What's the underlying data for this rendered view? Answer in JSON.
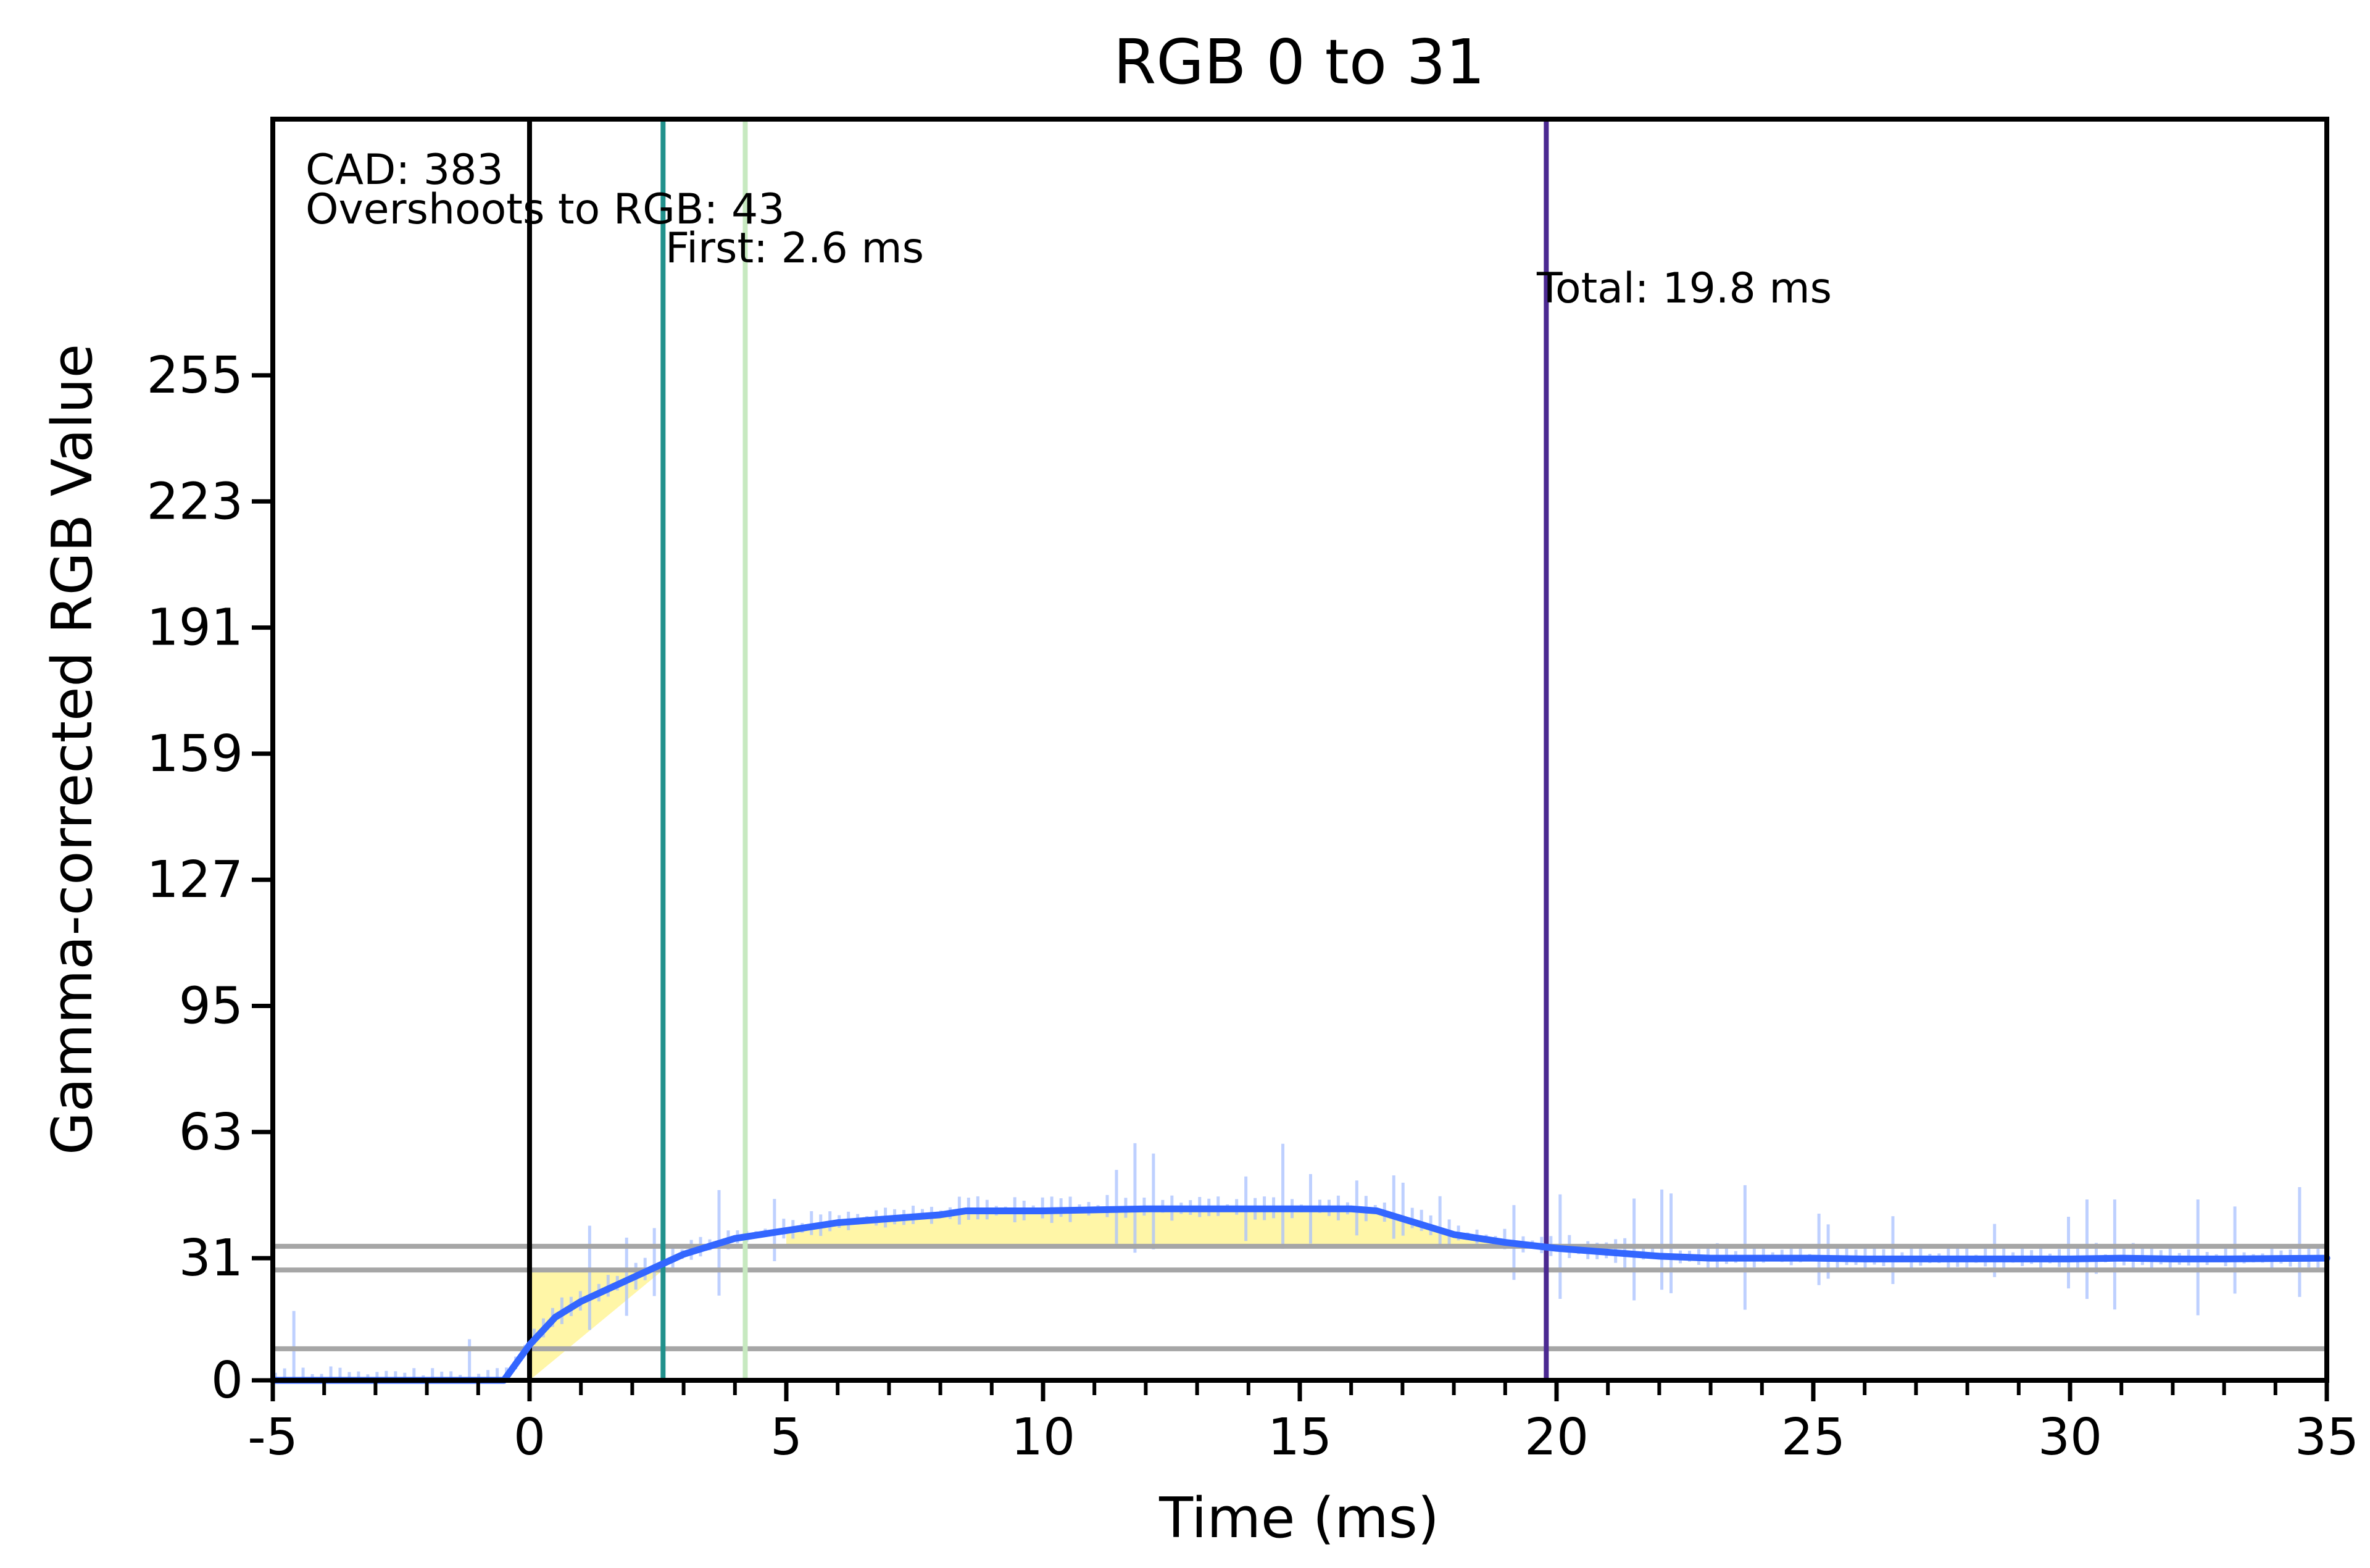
{
  "chart_data": {
    "type": "line",
    "title": "RGB 0 to 31",
    "xlabel": "Time (ms)",
    "ylabel": "Gamma-corrected RGB Value",
    "xlim": [
      -5,
      35
    ],
    "ylim": [
      0,
      320
    ],
    "x_ticks": [
      -5,
      0,
      5,
      10,
      15,
      20,
      25,
      30,
      35
    ],
    "x_tick_labels": [
      "-5",
      "0",
      "5",
      "10",
      "15",
      "20",
      "25",
      "30",
      "35"
    ],
    "y_ticks": [
      0,
      31,
      63,
      95,
      127,
      159,
      191,
      223,
      255
    ],
    "y_tick_labels": [
      "0",
      "31",
      "63",
      "95",
      "127",
      "159",
      "191",
      "223",
      "255"
    ],
    "grid": false,
    "legend": "none",
    "annotations": [
      "CAD: 383",
      "Overshoots to RGB: 43",
      "First: 2.6 ms",
      "Total: 19.8 ms"
    ],
    "horizontal_lines": [
      {
        "y": 8,
        "color": "#a6a6a6"
      },
      {
        "y": 28,
        "color": "#a6a6a6"
      },
      {
        "y": 34,
        "color": "#a6a6a6"
      }
    ],
    "vertical_lines": [
      {
        "x": 0,
        "color": "#000000"
      },
      {
        "x": 2.6,
        "color": "#21918c"
      },
      {
        "x": 4.2,
        "color": "#c7e9c0"
      },
      {
        "x": 19.8,
        "color": "#4b2991"
      }
    ],
    "series": [
      {
        "color": "#3366ff",
        "x": [
          -5,
          -4,
          -3,
          -2,
          -1,
          -0.5,
          0,
          0.5,
          1,
          1.5,
          2,
          2.5,
          3,
          3.5,
          4,
          4.5,
          5,
          6,
          7,
          8,
          8.5,
          10,
          12,
          14,
          15,
          16,
          16.5,
          17,
          17.5,
          18,
          18.5,
          19,
          20,
          21,
          22,
          23,
          24,
          25,
          26,
          28,
          30,
          31,
          32,
          33,
          35
        ],
        "y": [
          0,
          0,
          0,
          0,
          0,
          0,
          9,
          16,
          20,
          23,
          26,
          29,
          32,
          34,
          36,
          37,
          38,
          40,
          41,
          42,
          43,
          43,
          43.5,
          43.5,
          43.5,
          43.5,
          43,
          41,
          39,
          37,
          36,
          35,
          33.5,
          32.5,
          31.5,
          31,
          31,
          31,
          30.8,
          30.8,
          30.8,
          31,
          30.8,
          30.8,
          31
        ]
      }
    ],
    "shaded_regions": [
      {
        "x_start": 0,
        "x_end": 2.6,
        "y_low_line": 0,
        "y_high_line": 28,
        "color": "#fff59d"
      },
      {
        "x_start": 5,
        "x_end": 19.8,
        "y_low": 34,
        "y_high_series": 0,
        "color": "#fff59d"
      }
    ]
  }
}
